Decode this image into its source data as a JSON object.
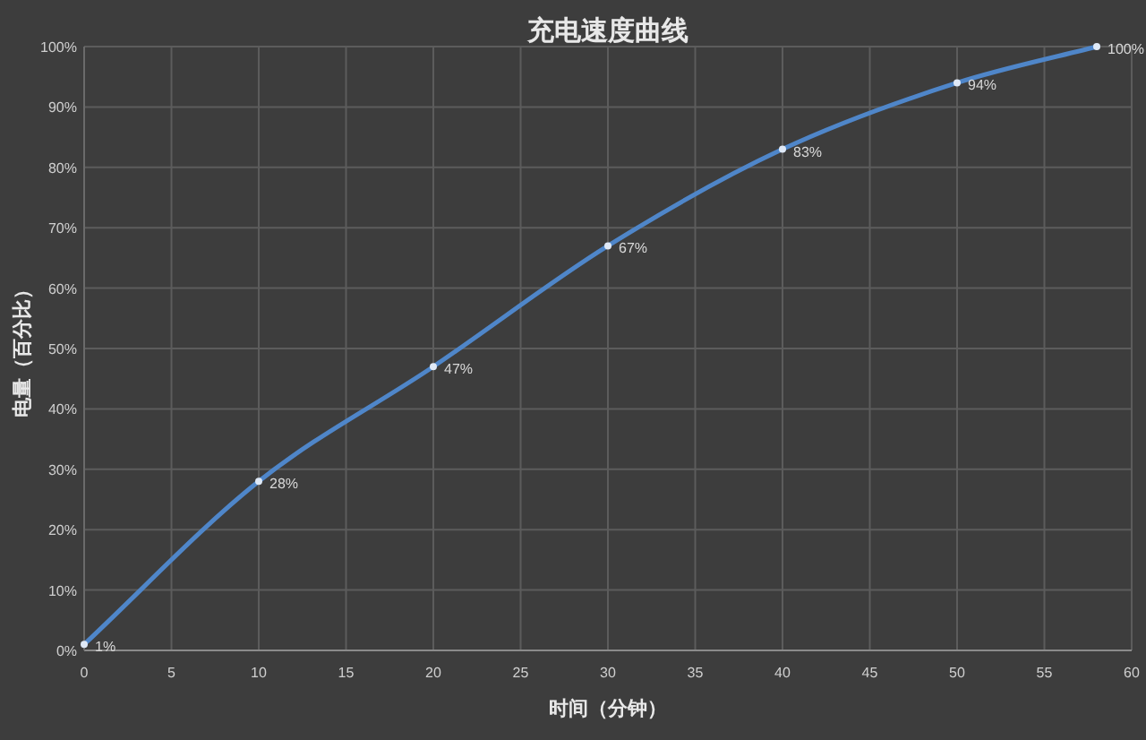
{
  "chart_data": {
    "type": "line",
    "title": "充电速度曲线",
    "xlabel": "时间（分钟）",
    "ylabel": "电量（百分比）",
    "x": [
      0,
      10,
      20,
      30,
      40,
      50,
      58
    ],
    "series": [
      {
        "color": "#4f86c9",
        "values": [
          1,
          28,
          47,
          67,
          83,
          94,
          100
        ],
        "value_labels": [
          "1%",
          "28%",
          "47%",
          "67%",
          "83%",
          "94%",
          "100%"
        ]
      }
    ],
    "xlim": [
      0,
      60
    ],
    "xticks": [
      0,
      5,
      10,
      15,
      20,
      25,
      30,
      35,
      40,
      45,
      50,
      55,
      60
    ],
    "ylim": [
      0,
      100
    ],
    "yticks": [
      {
        "value": 0,
        "label": "0%"
      },
      {
        "value": 10,
        "label": "10%"
      },
      {
        "value": 20,
        "label": "20%"
      },
      {
        "value": 30,
        "label": "30%"
      },
      {
        "value": 40,
        "label": "40%"
      },
      {
        "value": 50,
        "label": "50%"
      },
      {
        "value": 60,
        "label": "60%"
      },
      {
        "value": 70,
        "label": "70%"
      },
      {
        "value": 80,
        "label": "80%"
      },
      {
        "value": 90,
        "label": "90%"
      },
      {
        "value": 100,
        "label": "100%"
      }
    ],
    "grid": true,
    "marker": "circle",
    "line_style": "solid"
  }
}
